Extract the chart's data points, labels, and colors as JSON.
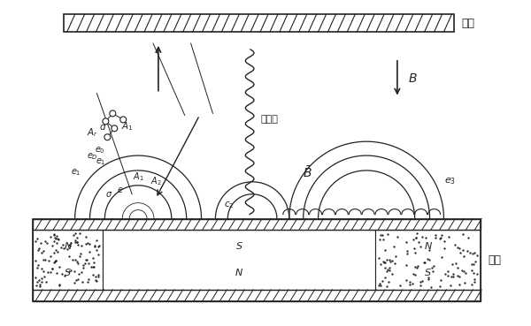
{
  "bg_color": "#ffffff",
  "fig_width": 6.0,
  "fig_height": 3.69,
  "substrate_label": "基片",
  "magnet_label": "磁軛",
  "target_atom_label": "靶原子",
  "B_label": "B",
  "B_bar_label": "B"
}
